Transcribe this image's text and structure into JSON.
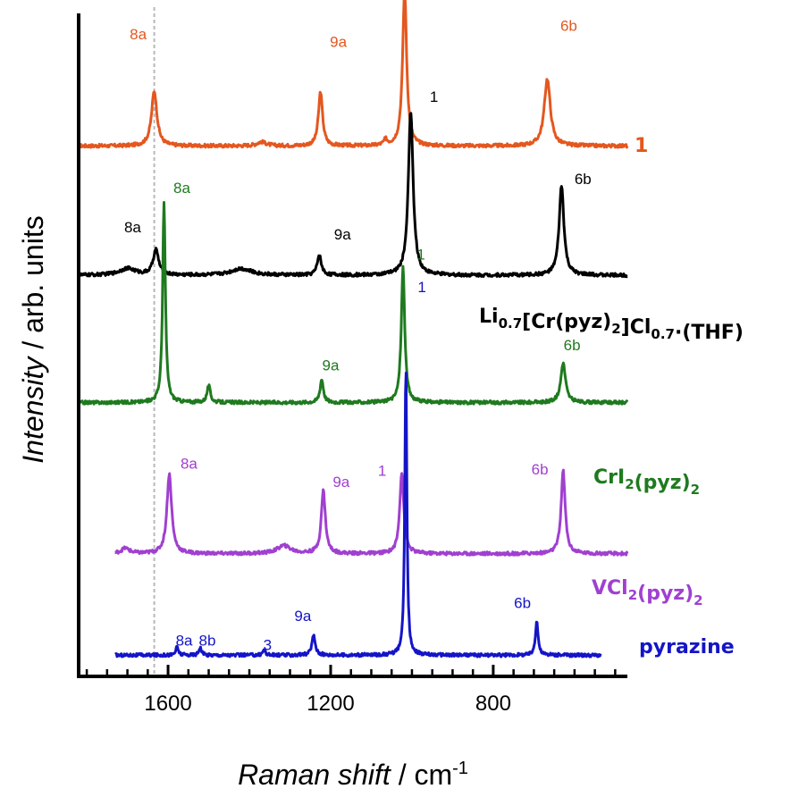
{
  "chart_data": {
    "type": "line",
    "title": "",
    "xlabel": {
      "italic": "Raman shift",
      "rest": " / cm",
      "sup": "-1"
    },
    "ylabel": {
      "italic": "Intensity",
      "rest": " / arb. units"
    },
    "xlim": [
      1820,
      470
    ],
    "x_reversed": true,
    "xticks": [
      1600,
      1200,
      800
    ],
    "xtick_labels": [
      "1600",
      "1200",
      "800"
    ],
    "minor_tick_step": 50,
    "reference_line": {
      "x": 1634,
      "style": "dashed",
      "color": "#b8b8b8"
    },
    "grid": false,
    "series": [
      {
        "key": "s1",
        "color": "#e4571f",
        "label": [
          {
            "t": "1"
          }
        ],
        "baseline": 0.8,
        "x_range": [
          1820,
          470
        ],
        "peaks": [
          {
            "x": 1634,
            "h": 0.083,
            "w": 8,
            "label": "8a"
          },
          {
            "x": 1225,
            "h": 0.082,
            "w": 6,
            "label": "9a"
          },
          {
            "x": 1018,
            "h": 0.232,
            "w": 6,
            "label": "1"
          },
          {
            "x": 667,
            "h": 0.101,
            "w": 9,
            "label": "6b"
          },
          {
            "x": 1370,
            "h": 0.006,
            "w": 14
          },
          {
            "x": 1065,
            "h": 0.008,
            "w": 5
          }
        ]
      },
      {
        "key": "s2",
        "color": "#000000",
        "label": [
          {
            "t": "Li"
          },
          {
            "t": "0.7",
            "sub": true
          },
          {
            "t": "[Cr(pyz)"
          },
          {
            "t": "2",
            "sub": true
          },
          {
            "t": "]Cl"
          },
          {
            "t": "0.7",
            "sub": true
          },
          {
            "t": "·(THF)"
          }
        ],
        "baseline": 0.605,
        "x_range": [
          1820,
          470
        ],
        "peaks": [
          {
            "x": 1630,
            "h": 0.038,
            "w": 8,
            "label": "8a"
          },
          {
            "x": 1228,
            "h": 0.03,
            "w": 6,
            "label": "9a"
          },
          {
            "x": 1003,
            "h": 0.248,
            "w": 7,
            "label": "1"
          },
          {
            "x": 632,
            "h": 0.135,
            "w": 7,
            "label": "6b"
          },
          {
            "x": 1700,
            "h": 0.01,
            "w": 25
          },
          {
            "x": 1420,
            "h": 0.01,
            "w": 30
          }
        ]
      },
      {
        "key": "s3",
        "color": "#1f7a1f",
        "label": [
          {
            "t": "CrI"
          },
          {
            "t": "2",
            "sub": true
          },
          {
            "t": "(pyz)"
          },
          {
            "t": "2",
            "sub": true
          }
        ],
        "baseline": 0.413,
        "x_range": [
          1820,
          470
        ],
        "peaks": [
          {
            "x": 1610,
            "h": 0.3,
            "w": 4,
            "label": "8a"
          },
          {
            "x": 1222,
            "h": 0.035,
            "w": 5,
            "label": "9a"
          },
          {
            "x": 1022,
            "h": 0.205,
            "w": 5,
            "label": "1"
          },
          {
            "x": 628,
            "h": 0.06,
            "w": 7,
            "label": "6b"
          },
          {
            "x": 1500,
            "h": 0.025,
            "w": 5
          }
        ]
      },
      {
        "key": "s4",
        "color": "#a040d0",
        "label": [
          {
            "t": "VCl"
          },
          {
            "t": "2",
            "sub": true
          },
          {
            "t": "(pyz)"
          },
          {
            "t": "2",
            "sub": true
          }
        ],
        "baseline": 0.185,
        "x_range": [
          1730,
          470
        ],
        "peaks": [
          {
            "x": 1597,
            "h": 0.12,
            "w": 7,
            "label": "8a"
          },
          {
            "x": 1218,
            "h": 0.095,
            "w": 6,
            "label": "9a"
          },
          {
            "x": 1025,
            "h": 0.123,
            "w": 6,
            "label": "1"
          },
          {
            "x": 628,
            "h": 0.125,
            "w": 6,
            "label": "6b"
          },
          {
            "x": 1705,
            "h": 0.008,
            "w": 12
          },
          {
            "x": 1315,
            "h": 0.012,
            "w": 20
          }
        ]
      },
      {
        "key": "s5",
        "color": "#1414c8",
        "label": [
          {
            "t": "pyrazine"
          }
        ],
        "baseline": 0.032,
        "x_range": [
          1730,
          535
        ],
        "peaks": [
          {
            "x": 1578,
            "h": 0.012,
            "w": 4,
            "label": "8a"
          },
          {
            "x": 1521,
            "h": 0.012,
            "w": 4,
            "label": "8b"
          },
          {
            "x": 1364,
            "h": 0.008,
            "w": 4,
            "label": "3"
          },
          {
            "x": 1242,
            "h": 0.03,
            "w": 5,
            "label": "9a"
          },
          {
            "x": 1015,
            "h": 0.44,
            "w": 3,
            "label": "1"
          },
          {
            "x": 693,
            "h": 0.052,
            "w": 4,
            "label": "6b"
          }
        ]
      }
    ]
  }
}
